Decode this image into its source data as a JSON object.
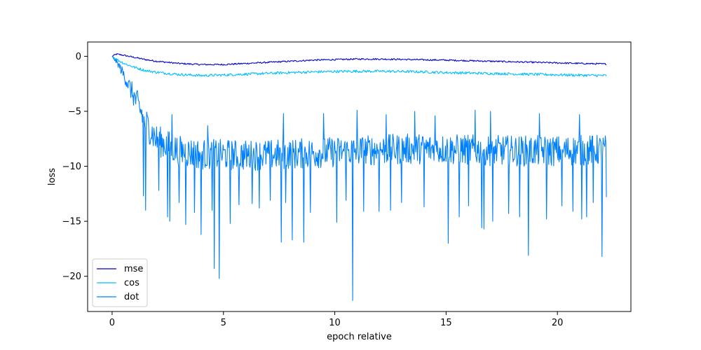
{
  "chart_data": {
    "type": "line",
    "title": "",
    "xlabel": "epoch relative",
    "ylabel": "loss",
    "xlim": [
      -1.1,
      23.3
    ],
    "ylim": [
      -23.2,
      1.3
    ],
    "xticks": [
      0,
      5,
      10,
      15,
      20
    ],
    "yticks": [
      0,
      -5,
      -10,
      -15,
      -20
    ],
    "grid": false,
    "legend": {
      "placement": "lower-left",
      "entries": [
        "mse",
        "cos",
        "dot"
      ]
    },
    "x_range": [
      0,
      22.2
    ],
    "series": [
      {
        "name": "mse",
        "color": "#0000cd",
        "points": [
          [
            0,
            0
          ],
          [
            0.2,
            0.2
          ],
          [
            0.5,
            0.1
          ],
          [
            1,
            -0.1
          ],
          [
            1.5,
            -0.3
          ],
          [
            2,
            -0.45
          ],
          [
            3,
            -0.65
          ],
          [
            4,
            -0.75
          ],
          [
            5,
            -0.75
          ],
          [
            6,
            -0.65
          ],
          [
            7,
            -0.55
          ],
          [
            8,
            -0.45
          ],
          [
            9,
            -0.35
          ],
          [
            10,
            -0.3
          ],
          [
            11,
            -0.25
          ],
          [
            12,
            -0.25
          ],
          [
            13,
            -0.28
          ],
          [
            14,
            -0.32
          ],
          [
            15,
            -0.35
          ],
          [
            16,
            -0.4
          ],
          [
            17,
            -0.45
          ],
          [
            18,
            -0.5
          ],
          [
            19,
            -0.55
          ],
          [
            20,
            -0.6
          ],
          [
            21,
            -0.65
          ],
          [
            22.2,
            -0.7
          ]
        ],
        "noise": 0.07
      },
      {
        "name": "cos",
        "color": "#00bfff",
        "points": [
          [
            0,
            0
          ],
          [
            0.3,
            -0.4
          ],
          [
            0.6,
            -0.7
          ],
          [
            1,
            -1.0
          ],
          [
            1.5,
            -1.3
          ],
          [
            2,
            -1.45
          ],
          [
            3,
            -1.65
          ],
          [
            4,
            -1.75
          ],
          [
            5,
            -1.7
          ],
          [
            6,
            -1.62
          ],
          [
            7,
            -1.55
          ],
          [
            8,
            -1.48
          ],
          [
            9,
            -1.42
          ],
          [
            10,
            -1.38
          ],
          [
            11,
            -1.36
          ],
          [
            12,
            -1.36
          ],
          [
            13,
            -1.38
          ],
          [
            14,
            -1.42
          ],
          [
            15,
            -1.48
          ],
          [
            16,
            -1.52
          ],
          [
            17,
            -1.56
          ],
          [
            18,
            -1.6
          ],
          [
            19,
            -1.64
          ],
          [
            20,
            -1.68
          ],
          [
            21,
            -1.72
          ],
          [
            22.2,
            -1.75
          ]
        ],
        "noise": 0.12
      },
      {
        "name": "dot",
        "color": "#0080ff",
        "points": [
          [
            0,
            0
          ],
          [
            0.3,
            -0.8
          ],
          [
            0.6,
            -2.0
          ],
          [
            0.9,
            -3.3
          ],
          [
            1.2,
            -4.6
          ],
          [
            1.5,
            -6.0
          ],
          [
            2,
            -7.6
          ],
          [
            3,
            -8.6
          ],
          [
            4,
            -8.9
          ],
          [
            6,
            -9.0
          ],
          [
            8,
            -8.9
          ],
          [
            10,
            -8.7
          ],
          [
            12,
            -8.5
          ],
          [
            14,
            -8.4
          ],
          [
            16,
            -8.5
          ],
          [
            18,
            -8.6
          ],
          [
            20,
            -8.6
          ],
          [
            22.2,
            -8.5
          ]
        ],
        "noise": 1.4,
        "spikes": [
          [
            1.4,
            -12.7
          ],
          [
            1.5,
            -14.0
          ],
          [
            2.1,
            -12.2
          ],
          [
            2.5,
            -14.6
          ],
          [
            2.6,
            -15.0
          ],
          [
            3,
            -13.3
          ],
          [
            3.3,
            -15.3
          ],
          [
            3.7,
            -14.2
          ],
          [
            4.0,
            -16.2
          ],
          [
            4.5,
            -14.0
          ],
          [
            4.6,
            -19.3
          ],
          [
            4.8,
            -20.2
          ],
          [
            5.3,
            -15.2
          ],
          [
            5.7,
            -13.5
          ],
          [
            6.3,
            -13.4
          ],
          [
            6.6,
            -13.8
          ],
          [
            7.1,
            -13.1
          ],
          [
            7.6,
            -16.9
          ],
          [
            7.8,
            -13.3
          ],
          [
            8.1,
            -16.7
          ],
          [
            8.6,
            -16.9
          ],
          [
            8.9,
            -14.2
          ],
          [
            9.5,
            -16.2
          ],
          [
            10.1,
            -15.1
          ],
          [
            10.5,
            -13.1
          ],
          [
            10.8,
            -22.2
          ],
          [
            11.0,
            -15.9
          ],
          [
            11.3,
            -14.1
          ],
          [
            12.0,
            -14.1
          ],
          [
            12.5,
            -14.0
          ],
          [
            13.0,
            -13.3
          ],
          [
            14.0,
            -13.7
          ],
          [
            15.1,
            -17.0
          ],
          [
            15.6,
            -14.6
          ],
          [
            16.0,
            -13.6
          ],
          [
            16.6,
            -15.6
          ],
          [
            16.7,
            -15.7
          ],
          [
            17.1,
            -15.0
          ],
          [
            17.8,
            -14.3
          ],
          [
            18.3,
            -14.6
          ],
          [
            18.7,
            -18.1
          ],
          [
            19.5,
            -14.8
          ],
          [
            20.2,
            -13.6
          ],
          [
            20.7,
            -14.1
          ],
          [
            21.1,
            -14.8
          ],
          [
            21.3,
            -14.6
          ],
          [
            21.6,
            -13.3
          ],
          [
            22.0,
            -18.2
          ],
          [
            22.2,
            -12.8
          ]
        ],
        "peaks": [
          [
            2.7,
            -5.3
          ],
          [
            4.3,
            -6.3
          ],
          [
            7.7,
            -5.2
          ],
          [
            9.5,
            -5.2
          ],
          [
            11.0,
            -4.9
          ],
          [
            12.3,
            -5.3
          ],
          [
            13.6,
            -5.0
          ],
          [
            14.5,
            -5.4
          ],
          [
            16.3,
            -4.9
          ],
          [
            17.0,
            -5.0
          ],
          [
            19.2,
            -5.2
          ],
          [
            21.0,
            -5.3
          ]
        ]
      }
    ]
  }
}
